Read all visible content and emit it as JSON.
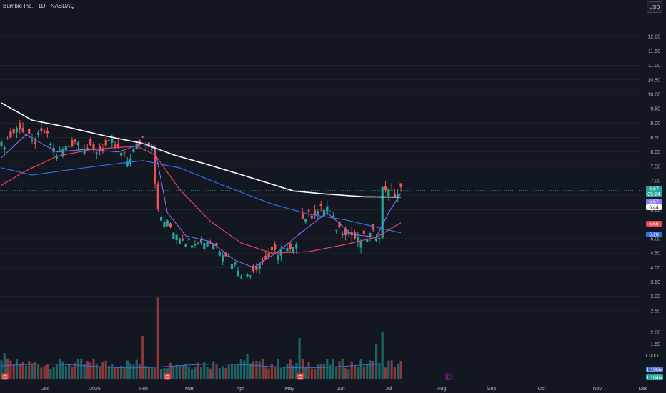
{
  "header": {
    "title": "Bumble Inc. · 1D · NASDAQ",
    "currency_button": "USD"
  },
  "colors": {
    "background": "#131722",
    "up": "#26a69a",
    "down": "#ef5350",
    "ma_short": "#8b74f5",
    "ma_mid": "#e8445a",
    "ma_long": "#2f6fe0",
    "ma_200": "#ffffff",
    "volume_ma": "#3d6fd1",
    "last_price_line": "#26a69a"
  },
  "chart_data": {
    "type": "candlestick",
    "symbol": "Bumble Inc.",
    "interval": "1D",
    "exchange": "NASDAQ",
    "currency": "USD",
    "y_price_ticks": [
      "12.00",
      "11.50",
      "11.00",
      "10.50",
      "10.00",
      "9.50",
      "9.00",
      "8.50",
      "8.00",
      "7.50",
      "7.00",
      "6.50",
      "6.00",
      "5.50",
      "5.00",
      "4.50",
      "4.00",
      "3.50",
      "3.00",
      "2.50"
    ],
    "y_volume_ticks": [
      "2.00",
      "1.50",
      "1.0000"
    ],
    "x_ticks": [
      "Dec",
      "2025",
      "Feb",
      "Mar",
      "Apr",
      "May",
      "Jun",
      "Jul",
      "Aug",
      "Sep",
      "Oct",
      "Nov",
      "Dec"
    ],
    "price_tags": [
      {
        "value": "6.67",
        "sub": "05:24",
        "color": "#26a69a"
      },
      {
        "value": "6.57",
        "color": "#8b74f5"
      },
      {
        "value": "6.44",
        "color": "#ffffff"
      },
      {
        "value": "5.55",
        "color": "#e8445a"
      },
      {
        "value": "5.20",
        "color": "#2f6fe0"
      }
    ],
    "volume_tags": [
      {
        "value": "1.196M",
        "color": "#3d6fd1"
      },
      {
        "value": "1.184M",
        "color": "#26a69a"
      }
    ],
    "event_markers": [
      "E",
      "E",
      "E",
      "E"
    ],
    "last_price": 6.67,
    "price_anchors": [
      [
        0,
        8.2
      ],
      [
        6,
        8.9
      ],
      [
        10,
        8.3
      ],
      [
        14,
        8.7
      ],
      [
        18,
        7.9
      ],
      [
        24,
        8.4
      ],
      [
        30,
        8.0
      ],
      [
        36,
        8.3
      ],
      [
        41,
        7.7
      ],
      [
        46,
        8.5
      ],
      [
        49,
        8.2
      ],
      [
        51,
        5.9
      ],
      [
        53,
        5.6
      ],
      [
        57,
        5.2
      ],
      [
        61,
        4.9
      ],
      [
        64,
        5.0
      ],
      [
        69,
        4.85
      ],
      [
        73,
        4.5
      ],
      [
        77,
        4.0
      ],
      [
        79,
        3.7
      ],
      [
        82,
        3.95
      ],
      [
        86,
        4.35
      ],
      [
        91,
        4.6
      ],
      [
        95,
        4.55
      ],
      [
        98,
        5.7
      ],
      [
        102,
        5.9
      ],
      [
        106,
        6.1
      ],
      [
        109,
        5.4
      ],
      [
        113,
        5.25
      ],
      [
        116,
        4.9
      ],
      [
        120,
        5.1
      ],
      [
        123,
        5.2
      ],
      [
        124,
        6.7
      ],
      [
        126,
        6.8
      ],
      [
        128,
        6.5
      ],
      [
        130,
        6.67
      ]
    ],
    "ma_200_anchors": [
      [
        0,
        9.7
      ],
      [
        10,
        9.1
      ],
      [
        22,
        8.85
      ],
      [
        34,
        8.55
      ],
      [
        46,
        8.3
      ],
      [
        56,
        7.9
      ],
      [
        66,
        7.6
      ],
      [
        80,
        7.15
      ],
      [
        95,
        6.65
      ],
      [
        105,
        6.55
      ],
      [
        118,
        6.45
      ],
      [
        130,
        6.44
      ]
    ],
    "ma_long_anchors": [
      [
        0,
        7.45
      ],
      [
        10,
        7.2
      ],
      [
        20,
        7.35
      ],
      [
        34,
        7.55
      ],
      [
        46,
        7.7
      ],
      [
        58,
        7.45
      ],
      [
        72,
        6.85
      ],
      [
        88,
        6.2
      ],
      [
        100,
        5.85
      ],
      [
        112,
        5.65
      ],
      [
        130,
        5.2
      ]
    ],
    "ma_mid_anchors": [
      [
        0,
        6.85
      ],
      [
        8,
        7.35
      ],
      [
        18,
        7.85
      ],
      [
        30,
        8.1
      ],
      [
        44,
        8.2
      ],
      [
        50,
        7.9
      ],
      [
        58,
        6.7
      ],
      [
        68,
        5.6
      ],
      [
        78,
        4.85
      ],
      [
        88,
        4.5
      ],
      [
        100,
        4.55
      ],
      [
        112,
        4.8
      ],
      [
        122,
        5.05
      ],
      [
        130,
        5.55
      ]
    ],
    "ma_short_anchors": [
      [
        0,
        7.8
      ],
      [
        8,
        8.6
      ],
      [
        18,
        8.0
      ],
      [
        28,
        8.1
      ],
      [
        38,
        8.0
      ],
      [
        46,
        8.3
      ],
      [
        50,
        8.1
      ],
      [
        54,
        5.9
      ],
      [
        60,
        5.1
      ],
      [
        68,
        4.9
      ],
      [
        76,
        4.25
      ],
      [
        82,
        4.0
      ],
      [
        90,
        4.55
      ],
      [
        98,
        5.25
      ],
      [
        106,
        5.9
      ],
      [
        114,
        5.15
      ],
      [
        122,
        5.05
      ],
      [
        126,
        5.9
      ],
      [
        130,
        6.57
      ]
    ],
    "volume_spikes": [
      [
        51,
        3.5
      ],
      [
        46,
        1.85
      ],
      [
        97,
        1.75
      ],
      [
        122,
        1.5
      ],
      [
        124,
        2.0
      ],
      [
        1,
        1.1
      ],
      [
        80,
        1.05
      ]
    ],
    "volume_baseline": 0.42,
    "volume_ma": 0.55,
    "ylim_price": [
      2.3,
      12.4
    ],
    "ylim_volume": [
      0,
      4.0
    ]
  }
}
